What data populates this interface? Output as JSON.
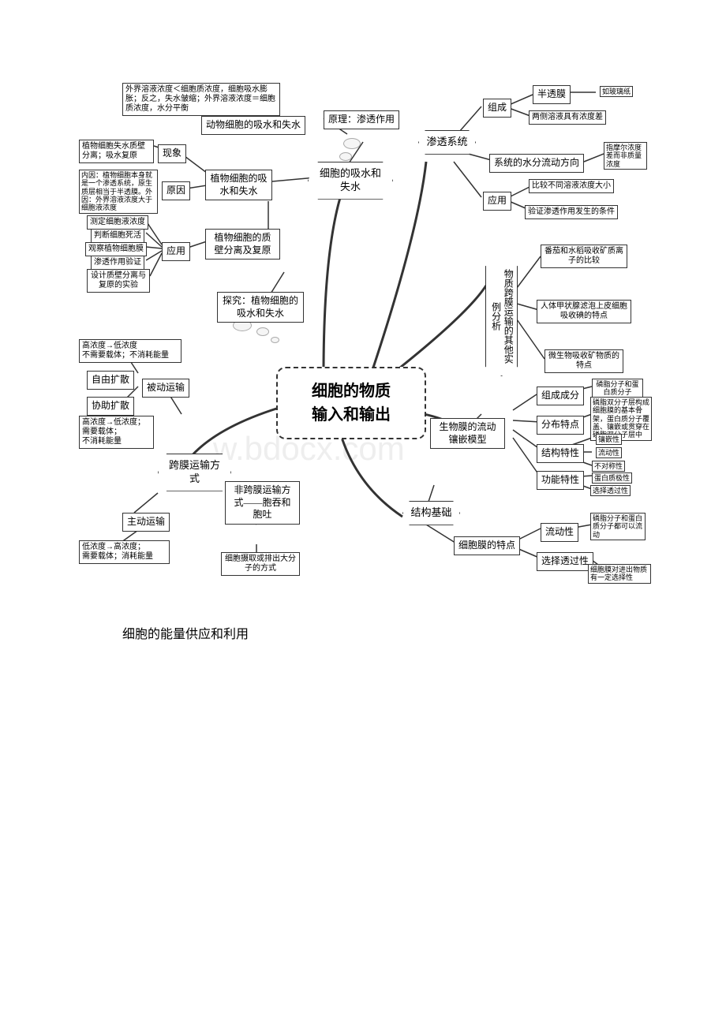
{
  "caption": "细胞的能量供应和利用",
  "watermark": "w.bdocx.com",
  "center": "细胞的物质\n输入和输出",
  "nodes": {
    "n1": "外界溶液浓度＜细胞质浓度，细胞吸水膨胀；反之，失水皱缩；外界溶液浓度＝细胞质浓度，水分平衡",
    "n2": "动物细胞的吸水和失水",
    "n3": "原理：渗透作用",
    "n4": "植物细胞失水质壁分离；吸水复原",
    "n5": "现象",
    "n6": "内因：植物细胞本身就是一个渗透系统，原生质层相当于半透膜。外因：外界溶液浓度大于细胞液浓度",
    "n7": "原因",
    "n8": "植物细胞的吸水和失水",
    "n9": "细胞的吸水和失水",
    "n10": "测定细胞液浓度",
    "n11": "判断细胞死活",
    "n12": "观察植物细胞膜",
    "n13": "渗透作用验证",
    "n14": "设计质壁分离与复原的实验",
    "n15": "应用",
    "n16": "植物细胞的质壁分离及复原",
    "n17": "探究：植物细胞的吸水和失水",
    "n18": "高浓度→低浓度\n不需要载体；不消耗能量",
    "n19": "自由扩散",
    "n20": "被动运输",
    "n21": "协助扩散",
    "n22": "高浓度→低浓度；\n需要载体；\n不消耗能量",
    "n23": "跨膜运输方式",
    "n24": "非跨膜运输方式——胞吞和胞吐",
    "n25": "主动运输",
    "n26": "低浓度→高浓度；\n需要载体；消耗能量",
    "n27": "细胞摄取或排出大分子的方式",
    "n28": "渗透系统",
    "n29": "组成",
    "n30": "半透膜",
    "n31": "如玻璃纸",
    "n32": "两侧溶液具有浓度差",
    "n33": "系统的水分流动方向",
    "n34": "指摩尔浓度差而非质量浓度",
    "n35": "应用",
    "n36": "比较不同溶液浓度大小",
    "n37": "验证渗透作用发生的条件",
    "n38": "物质跨膜运输的其他实例分析",
    "n39": "番茄和水稻吸收矿质离子的比较",
    "n40": "人体甲状腺滤泡上皮细胞吸收碘的特点",
    "n41": "微生物吸收矿物质的特点",
    "n42": "生物膜的流动镶嵌模型",
    "n43": "组成成分",
    "n44": "磷脂分子和蛋白质分子",
    "n45": "分布特点",
    "n46": "磷脂双分子层构成细胞膜的基本骨架，蛋白质分子覆盖、镶嵌或贯穿在磷脂双分子层中",
    "n47": "结构特性",
    "n48": "镶嵌性",
    "n49": "流动性",
    "n50": "不对称性",
    "n51": "功能特性",
    "n52": "蛋白质极性",
    "n53": "选择透过性",
    "n54": "结构基础",
    "n55": "细胞膜的特点",
    "n56": "流动性",
    "n57": "磷脂分子和蛋白质分子都可以流动",
    "n58": "选择透过性",
    "n59": "细胞膜对进出物质有一定选择性"
  },
  "styling": {
    "background": "#ffffff",
    "border_color": "#333333",
    "text_color": "#000000",
    "line_color": "#333333",
    "center_border_style": "dashed",
    "font_family": "SimSun",
    "node_font_size": 12,
    "small_font_size": 10,
    "tiny_font_size": 9,
    "center_font_size": 20
  }
}
